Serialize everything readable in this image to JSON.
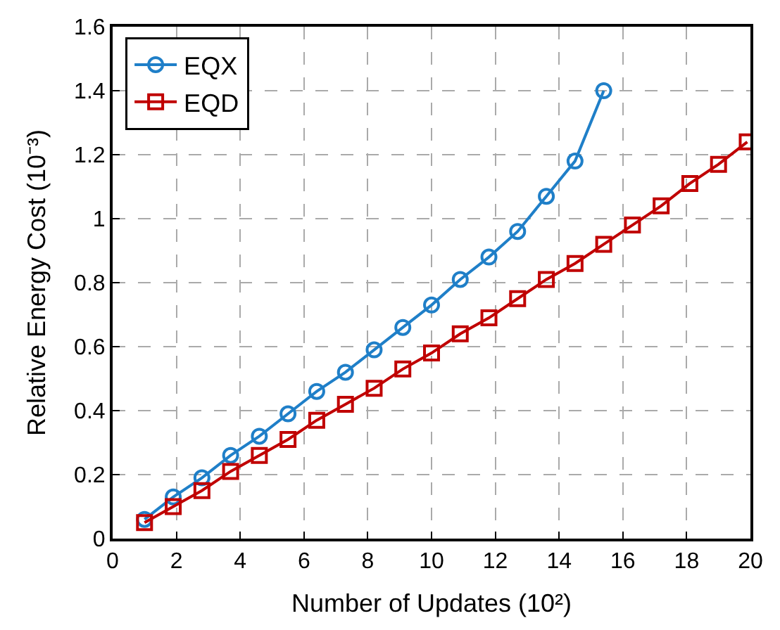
{
  "chart_data": {
    "type": "line",
    "xlabel": "Number of Updates (10²)",
    "ylabel": "Relative Energy Cost (10⁻³)",
    "xlim": [
      0,
      20
    ],
    "xticks": [
      0,
      2,
      4,
      6,
      8,
      10,
      12,
      14,
      16,
      18,
      20
    ],
    "ylim": [
      0,
      1.6
    ],
    "yticks": [
      0,
      0.2,
      0.4,
      0.6,
      0.8,
      1,
      1.2,
      1.4,
      1.6
    ],
    "grid": true,
    "legend": "top left",
    "line_style": "solid",
    "series": [
      {
        "name": "EQX",
        "color": "#1f7fc8",
        "marker": "circle",
        "x": [
          1,
          1.9,
          2.8,
          3.7,
          4.6,
          5.5,
          6.4,
          7.3,
          8.2,
          9.1,
          10,
          10.9,
          11.8,
          12.7,
          13.6,
          14.5,
          15.4
        ],
        "values": [
          0.06,
          0.13,
          0.19,
          0.26,
          0.32,
          0.39,
          0.46,
          0.52,
          0.59,
          0.66,
          0.73,
          0.81,
          0.88,
          0.96,
          1.07,
          1.18,
          1.4
        ]
      },
      {
        "name": "EQD",
        "color": "#c00000",
        "marker": "square",
        "x": [
          1,
          1.9,
          2.8,
          3.7,
          4.6,
          5.5,
          6.4,
          7.3,
          8.2,
          9.1,
          10,
          10.9,
          11.8,
          12.7,
          13.6,
          14.5,
          15.4,
          16.3,
          17.2,
          18.1,
          19,
          19.9
        ],
        "values": [
          0.05,
          0.1,
          0.15,
          0.21,
          0.26,
          0.31,
          0.37,
          0.42,
          0.47,
          0.53,
          0.58,
          0.64,
          0.69,
          0.75,
          0.81,
          0.86,
          0.92,
          0.98,
          1.04,
          1.11,
          1.17,
          1.24
        ]
      }
    ]
  }
}
